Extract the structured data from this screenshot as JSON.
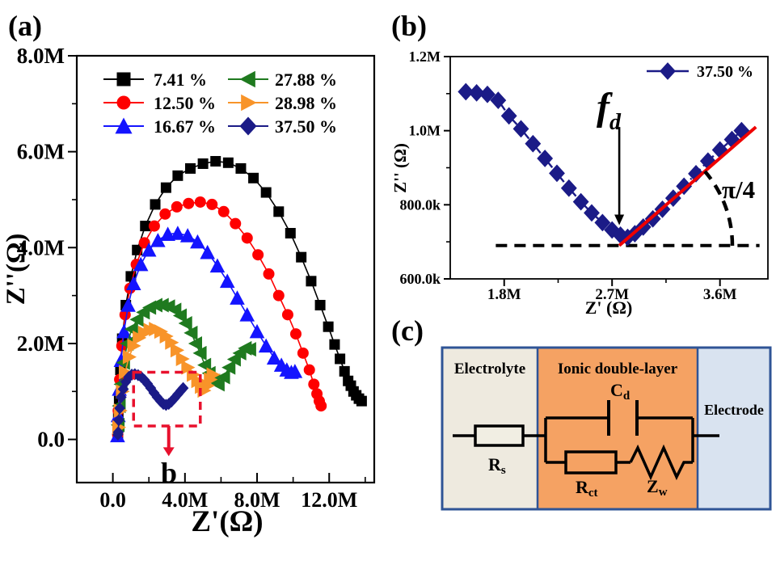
{
  "figure": {
    "background": "#ffffff"
  },
  "chart_data": [
    {
      "id": "a",
      "type": "scatter",
      "panel_label": "(a)",
      "xlabel": "Z'(Ω)",
      "ylabel": "Z''(Ω)",
      "xlim": [
        -2,
        14.5
      ],
      "ylim": [
        -0.9,
        8
      ],
      "x_unit": "MΩ",
      "grid": false,
      "legend_position": "top-left-two-columns",
      "x_major_ticks": [
        {
          "value": 0,
          "label": "0.0"
        },
        {
          "value": 4,
          "label": "4.0M"
        },
        {
          "value": 8,
          "label": "8.0M"
        },
        {
          "value": 12,
          "label": "12.0M"
        }
      ],
      "x_minor_ticks": [
        2,
        6,
        10,
        14
      ],
      "y_major_ticks": [
        {
          "value": 0,
          "label": "0.0"
        },
        {
          "value": 2,
          "label": "2.0M"
        },
        {
          "value": 4,
          "label": "4.0M"
        },
        {
          "value": 6,
          "label": "6.0M"
        },
        {
          "value": 8,
          "label": "8.0M"
        }
      ],
      "y_minor_ticks": [
        1,
        3,
        5,
        7
      ],
      "series": [
        {
          "name": "7.41 %",
          "marker": "square",
          "color": "#000000",
          "marker_size": 13,
          "points": [
            [
              0.28,
              0.12
            ],
            [
              0.3,
              0.45
            ],
            [
              0.35,
              0.8
            ],
            [
              0.42,
              1.45
            ],
            [
              0.52,
              2.1
            ],
            [
              0.72,
              2.8
            ],
            [
              1.0,
              3.4
            ],
            [
              1.35,
              3.95
            ],
            [
              1.8,
              4.45
            ],
            [
              2.35,
              4.9
            ],
            [
              2.95,
              5.25
            ],
            [
              3.6,
              5.5
            ],
            [
              4.3,
              5.65
            ],
            [
              5.0,
              5.75
            ],
            [
              5.7,
              5.8
            ],
            [
              6.4,
              5.77
            ],
            [
              7.1,
              5.65
            ],
            [
              7.8,
              5.45
            ],
            [
              8.5,
              5.15
            ],
            [
              9.2,
              4.75
            ],
            [
              9.85,
              4.3
            ],
            [
              10.45,
              3.8
            ],
            [
              11.0,
              3.3
            ],
            [
              11.5,
              2.8
            ],
            [
              11.95,
              2.35
            ],
            [
              12.3,
              1.98
            ],
            [
              12.6,
              1.68
            ],
            [
              12.85,
              1.42
            ],
            [
              13.05,
              1.22
            ],
            [
              13.2,
              1.12
            ],
            [
              13.35,
              1.0
            ],
            [
              13.5,
              0.92
            ],
            [
              13.65,
              0.85
            ],
            [
              13.8,
              0.8
            ]
          ]
        },
        {
          "name": "12.50 %",
          "marker": "circle",
          "color": "#fe0000",
          "marker_size": 14,
          "points": [
            [
              0.27,
              0.1
            ],
            [
              0.3,
              0.6
            ],
            [
              0.38,
              1.25
            ],
            [
              0.5,
              1.95
            ],
            [
              0.68,
              2.6
            ],
            [
              0.95,
              3.15
            ],
            [
              1.3,
              3.65
            ],
            [
              1.75,
              4.1
            ],
            [
              2.3,
              4.45
            ],
            [
              2.9,
              4.7
            ],
            [
              3.55,
              4.85
            ],
            [
              4.2,
              4.92
            ],
            [
              4.85,
              4.95
            ],
            [
              5.5,
              4.9
            ],
            [
              6.15,
              4.75
            ],
            [
              6.8,
              4.5
            ],
            [
              7.45,
              4.2
            ],
            [
              8.05,
              3.85
            ],
            [
              8.65,
              3.45
            ],
            [
              9.2,
              3.0
            ],
            [
              9.7,
              2.6
            ],
            [
              10.15,
              2.2
            ],
            [
              10.55,
              1.8
            ],
            [
              10.9,
              1.45
            ],
            [
              11.15,
              1.15
            ],
            [
              11.32,
              0.95
            ],
            [
              11.45,
              0.8
            ],
            [
              11.55,
              0.7
            ]
          ]
        },
        {
          "name": "16.67 %",
          "marker": "triangle-up",
          "color": "#1414ff",
          "marker_size": 15,
          "points": [
            [
              0.26,
              0.08
            ],
            [
              0.3,
              0.5
            ],
            [
              0.36,
              1.05
            ],
            [
              0.46,
              1.65
            ],
            [
              0.62,
              2.25
            ],
            [
              0.85,
              2.8
            ],
            [
              1.15,
              3.25
            ],
            [
              1.55,
              3.65
            ],
            [
              2.0,
              3.95
            ],
            [
              2.5,
              4.15
            ],
            [
              3.05,
              4.28
            ],
            [
              3.6,
              4.3
            ],
            [
              4.15,
              4.25
            ],
            [
              4.7,
              4.12
            ],
            [
              5.25,
              3.9
            ],
            [
              5.8,
              3.62
            ],
            [
              6.35,
              3.3
            ],
            [
              6.9,
              2.95
            ],
            [
              7.45,
              2.6
            ],
            [
              8.0,
              2.25
            ],
            [
              8.5,
              1.95
            ],
            [
              8.95,
              1.7
            ],
            [
              9.35,
              1.55
            ],
            [
              9.65,
              1.45
            ],
            [
              9.9,
              1.4
            ],
            [
              10.1,
              1.42
            ]
          ]
        },
        {
          "name": "27.88 %",
          "marker": "triangle-left",
          "color": "#1f7a1f",
          "marker_size": 15,
          "points": [
            [
              0.3,
              0.3
            ],
            [
              0.36,
              0.7
            ],
            [
              0.46,
              1.15
            ],
            [
              0.6,
              1.6
            ],
            [
              0.8,
              2.0
            ],
            [
              1.05,
              2.3
            ],
            [
              1.35,
              2.5
            ],
            [
              1.7,
              2.65
            ],
            [
              2.05,
              2.75
            ],
            [
              2.4,
              2.8
            ],
            [
              2.75,
              2.8
            ],
            [
              3.1,
              2.77
            ],
            [
              3.45,
              2.7
            ],
            [
              3.75,
              2.58
            ],
            [
              4.05,
              2.42
            ],
            [
              4.35,
              2.22
            ],
            [
              4.6,
              2.0
            ],
            [
              4.85,
              1.8
            ],
            [
              5.1,
              1.55
            ],
            [
              5.35,
              1.38
            ],
            [
              5.6,
              1.22
            ],
            [
              5.85,
              1.15
            ],
            [
              6.15,
              1.3
            ],
            [
              6.45,
              1.5
            ],
            [
              6.75,
              1.67
            ],
            [
              7.05,
              1.8
            ],
            [
              7.35,
              1.9
            ],
            [
              7.6,
              1.88
            ]
          ]
        },
        {
          "name": "28.98 %",
          "marker": "triangle-right",
          "color": "#f89429",
          "marker_size": 15,
          "points": [
            [
              0.32,
              0.25
            ],
            [
              0.4,
              0.6
            ],
            [
              0.52,
              1.0
            ],
            [
              0.68,
              1.4
            ],
            [
              0.9,
              1.72
            ],
            [
              1.15,
              1.95
            ],
            [
              1.45,
              2.12
            ],
            [
              1.75,
              2.22
            ],
            [
              2.05,
              2.28
            ],
            [
              2.35,
              2.3
            ],
            [
              2.65,
              2.25
            ],
            [
              2.95,
              2.15
            ],
            [
              3.25,
              2.02
            ],
            [
              3.55,
              1.86
            ],
            [
              3.85,
              1.68
            ],
            [
              4.15,
              1.5
            ],
            [
              4.45,
              1.35
            ],
            [
              4.7,
              1.22
            ],
            [
              4.9,
              1.1
            ],
            [
              5.05,
              1.02
            ],
            [
              5.25,
              1.12
            ],
            [
              5.4,
              1.25
            ],
            [
              5.55,
              1.35
            ]
          ]
        },
        {
          "name": "37.50 %",
          "marker": "diamond",
          "color": "#1b1b87",
          "marker_size": 11,
          "points": [
            [
              0.28,
              0.1
            ],
            [
              0.3,
              0.15
            ],
            [
              0.33,
              0.4
            ],
            [
              0.38,
              0.65
            ],
            [
              0.46,
              0.88
            ],
            [
              0.58,
              1.05
            ],
            [
              0.72,
              1.2
            ],
            [
              0.88,
              1.3
            ],
            [
              1.05,
              1.35
            ],
            [
              1.22,
              1.36
            ],
            [
              1.4,
              1.34
            ],
            [
              1.58,
              1.3
            ],
            [
              1.75,
              1.24
            ],
            [
              1.92,
              1.16
            ],
            [
              2.1,
              1.07
            ],
            [
              2.28,
              0.97
            ],
            [
              2.46,
              0.88
            ],
            [
              2.64,
              0.8
            ],
            [
              2.8,
              0.74
            ],
            [
              2.95,
              0.72
            ],
            [
              3.1,
              0.74
            ],
            [
              3.25,
              0.79
            ],
            [
              3.42,
              0.86
            ],
            [
              3.6,
              0.94
            ],
            [
              3.78,
              1.02
            ],
            [
              3.9,
              1.07
            ]
          ]
        }
      ],
      "inset_marker": {
        "label": "b",
        "x1": 1.15,
        "y1": 0.28,
        "x2": 4.85,
        "y2": 1.4,
        "arrow_x": 3.1,
        "arrow_tip_y": -0.35,
        "color": "#e8112d"
      }
    },
    {
      "id": "b",
      "type": "scatter",
      "panel_label": "(b)",
      "xlabel": "Z' (Ω)",
      "ylabel": "Z'' (Ω)",
      "xlim": [
        1.35,
        4.0
      ],
      "ylim": [
        600,
        1200
      ],
      "x_unit": "MΩ",
      "y_unit": "kΩ",
      "grid": false,
      "legend_position": "top-right",
      "x_major_ticks": [
        {
          "value": 1.8,
          "label": "1.8M"
        },
        {
          "value": 2.7,
          "label": "2.7M"
        },
        {
          "value": 3.6,
          "label": "3.6M"
        }
      ],
      "x_minor_ticks": [
        2.25,
        3.15
      ],
      "y_major_ticks": [
        {
          "value": 600,
          "label": "600.0k"
        },
        {
          "value": 800,
          "label": "800.0k"
        },
        {
          "value": 1000,
          "label": "1.0M"
        },
        {
          "value": 1200,
          "label": "1.2M"
        }
      ],
      "y_minor_ticks": [
        700,
        900,
        1100
      ],
      "series": [
        {
          "name": "37.50 %",
          "marker": "diamond",
          "color": "#1b1b87",
          "marker_size": 16,
          "line_style": "dash-dot",
          "points": [
            [
              1.48,
              1105
            ],
            [
              1.57,
              1102
            ],
            [
              1.66,
              1098
            ],
            [
              1.75,
              1082
            ],
            [
              1.84,
              1040
            ],
            [
              1.94,
              1005
            ],
            [
              2.04,
              965
            ],
            [
              2.14,
              925
            ],
            [
              2.24,
              885
            ],
            [
              2.34,
              845
            ],
            [
              2.44,
              808
            ],
            [
              2.53,
              778
            ],
            [
              2.62,
              752
            ],
            [
              2.7,
              732
            ],
            [
              2.77,
              718
            ],
            [
              2.83,
              712
            ],
            [
              2.89,
              722
            ],
            [
              2.96,
              740
            ],
            [
              3.04,
              762
            ],
            [
              3.12,
              788
            ],
            [
              3.21,
              818
            ],
            [
              3.3,
              850
            ],
            [
              3.4,
              884
            ],
            [
              3.5,
              918
            ],
            [
              3.6,
              948
            ],
            [
              3.7,
              976
            ],
            [
              3.78,
              1000
            ]
          ]
        }
      ],
      "annotations": {
        "fd_main": "f",
        "fd_sub": "d",
        "angle_label": "π/4",
        "fit_line": {
          "color": "#ee0000",
          "x1": 2.76,
          "y1": 690,
          "x2": 3.9,
          "y2": 1010
        },
        "baseline": {
          "y": 690,
          "x1": 1.73,
          "x2": 3.93
        },
        "fd_arrow": {
          "x": 2.76,
          "y_from": 1010,
          "y_to": 745
        }
      }
    },
    {
      "id": "c",
      "type": "diagram",
      "panel_label": "(c)",
      "border_color": "#2f5496",
      "wire_color": "#000000",
      "regions": [
        {
          "name": "Electrolyte",
          "color": "#eeeadf"
        },
        {
          "name": "Ionic double-layer",
          "color": "#f5a263"
        },
        {
          "name": "Electrode",
          "color": "#d9e3f0"
        }
      ],
      "components": [
        {
          "type": "resistor",
          "label_main": "R",
          "label_sub": "s"
        },
        {
          "type": "capacitor",
          "label_main": "C",
          "label_sub": "d"
        },
        {
          "type": "resistor",
          "label_main": "R",
          "label_sub": "ct"
        },
        {
          "type": "warburg",
          "label_main": "Z",
          "label_sub": "w"
        }
      ]
    }
  ]
}
